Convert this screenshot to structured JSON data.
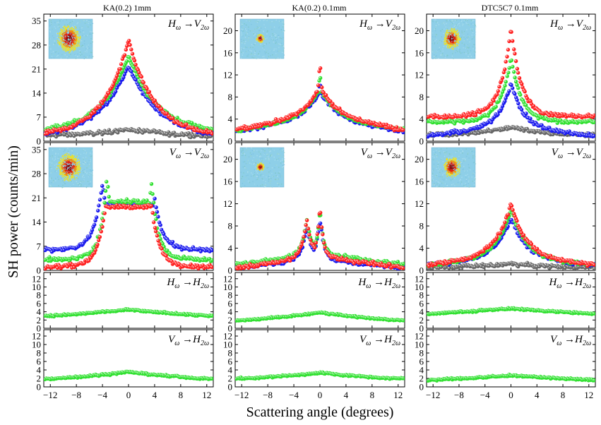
{
  "chart_data": {
    "type": "scatter",
    "title": "",
    "xlabel": "Scattering angle (degrees)",
    "ylabel": "SH power (counts/min)",
    "xlim": [
      -13,
      13
    ],
    "xticks": [
      -12,
      -8,
      -4,
      0,
      4,
      8,
      12
    ],
    "columns": [
      "KA(0.2) 1mm",
      "KA(0.2) 0.1mm",
      "DTC5C7    0.1mm"
    ],
    "series_colors": {
      "red": "#ff2020",
      "green": "#30e030",
      "blue": "#1a1aee",
      "gray": "#666666"
    },
    "panels": [
      {
        "col": 0,
        "row": 0,
        "input": "H",
        "output": "V",
        "ylim": [
          0,
          37
        ],
        "yticks": [
          0,
          7,
          14,
          21,
          28,
          35
        ],
        "inset": true,
        "inset_intensity": "large",
        "series": [
          {
            "name": "red",
            "peaks": [
              {
                "x": 0,
                "y": 29.5,
                "w": 3.8
              }
            ],
            "baseline": 2.0,
            "floor": 1.5
          },
          {
            "name": "green",
            "peaks": [
              {
                "x": 0,
                "y": 25,
                "w": 4.2
              }
            ],
            "baseline": 2.5,
            "floor": 2.5
          },
          {
            "name": "blue",
            "peaks": [
              {
                "x": 0,
                "y": 22,
                "w": 4.5
              }
            ],
            "baseline": 2.0,
            "floor": 1.0
          },
          {
            "name": "gray",
            "peaks": [
              {
                "x": 0,
                "y": 3.5,
                "w": 6
              }
            ],
            "baseline": 1.5,
            "floor": 1.5
          }
        ]
      },
      {
        "col": 1,
        "row": 0,
        "input": "H",
        "output": "V",
        "ylim": [
          0,
          23
        ],
        "yticks": [
          0,
          4,
          8,
          12,
          16,
          20
        ],
        "inset": true,
        "inset_intensity": "small",
        "series": [
          {
            "name": "red",
            "peaks": [
              {
                "x": 0,
                "y": 15,
                "w": 0.4
              },
              {
                "x": 0,
                "y": 10,
                "w": 2.5
              }
            ],
            "baseline": 4.5,
            "floor": 2.0
          },
          {
            "name": "green",
            "peaks": [
              {
                "x": 0,
                "y": 13,
                "w": 0.4
              },
              {
                "x": 0,
                "y": 9.5,
                "w": 2.5
              }
            ],
            "baseline": 4.2,
            "floor": 2.0
          },
          {
            "name": "blue",
            "peaks": [
              {
                "x": 0,
                "y": 11,
                "w": 0.6
              },
              {
                "x": 0,
                "y": 9,
                "w": 2.7
              }
            ],
            "baseline": 3.8,
            "floor": 1.8
          }
        ]
      },
      {
        "col": 2,
        "row": 0,
        "input": "H",
        "output": "V",
        "ylim": [
          0,
          23
        ],
        "yticks": [
          0,
          4,
          8,
          12,
          16,
          20
        ],
        "inset": true,
        "inset_intensity": "medium",
        "series": [
          {
            "name": "red",
            "peaks": [
              {
                "x": 0,
                "y": 20.5,
                "w": 1.6
              }
            ],
            "baseline": 4.5,
            "floor": 4.5
          },
          {
            "name": "green",
            "peaks": [
              {
                "x": 0,
                "y": 15,
                "w": 1.7
              }
            ],
            "baseline": 3.5,
            "floor": 3.5
          },
          {
            "name": "blue",
            "peaks": [
              {
                "x": 0,
                "y": 10.5,
                "w": 1.9
              }
            ],
            "baseline": 2.5,
            "floor": 1.0
          },
          {
            "name": "gray",
            "peaks": [
              {
                "x": 0,
                "y": 2.5,
                "w": 6
              }
            ],
            "baseline": 1.0,
            "floor": 1.0
          }
        ]
      },
      {
        "col": 0,
        "row": 1,
        "input": "V",
        "output": "V",
        "ylim": [
          0,
          37
        ],
        "yticks": [
          0,
          7,
          14,
          21,
          28,
          35
        ],
        "inset": true,
        "inset_intensity": "large",
        "series": [
          {
            "name": "red",
            "peaks": [
              {
                "x": -3.5,
                "y": 19,
                "w": 1.2
              },
              {
                "x": 3.5,
                "y": 19,
                "w": 1.2
              }
            ],
            "plateau": 18.5,
            "baseline": 1.5,
            "floor": 1.0
          },
          {
            "name": "green",
            "peaks": [
              {
                "x": -3.3,
                "y": 27.5,
                "w": 1.0
              },
              {
                "x": 3.5,
                "y": 26,
                "w": 1.0
              }
            ],
            "plateau": 20,
            "baseline": 4.0,
            "floor": 3.0
          },
          {
            "name": "blue",
            "peaks": [
              {
                "x": -4,
                "y": 25,
                "w": 1.3
              },
              {
                "x": 4,
                "y": 21,
                "w": 1.2
              }
            ],
            "plateau": 19,
            "baseline": 6.0,
            "floor": 6.0
          }
        ]
      },
      {
        "col": 1,
        "row": 1,
        "input": "V",
        "output": "V",
        "ylim": [
          0,
          23
        ],
        "yticks": [
          0,
          4,
          8,
          12,
          16,
          20
        ],
        "inset": true,
        "inset_intensity": "small",
        "series": [
          {
            "name": "red",
            "peaks": [
              {
                "x": -2,
                "y": 9.5,
                "w": 0.8
              },
              {
                "x": 0,
                "y": 11.5,
                "w": 0.5
              }
            ],
            "baseline": 2.5,
            "floor": 0.5
          },
          {
            "name": "green",
            "peaks": [
              {
                "x": -2,
                "y": 9.5,
                "w": 0.8
              },
              {
                "x": 0,
                "y": 11,
                "w": 0.5
              }
            ],
            "baseline": 3.0,
            "floor": 1.0
          },
          {
            "name": "blue",
            "peaks": [
              {
                "x": -2,
                "y": 8,
                "w": 0.9
              },
              {
                "x": 0,
                "y": 9.5,
                "w": 0.6
              }
            ],
            "baseline": 2.0,
            "floor": 0.5
          }
        ]
      },
      {
        "col": 2,
        "row": 1,
        "input": "V",
        "output": "V",
        "ylim": [
          0,
          23
        ],
        "yticks": [
          0,
          4,
          8,
          12,
          16,
          20
        ],
        "inset": true,
        "inset_intensity": "medium",
        "series": [
          {
            "name": "red",
            "peaks": [
              {
                "x": 0,
                "y": 12,
                "w": 2.3
              }
            ],
            "baseline": 2.5,
            "floor": 1.0
          },
          {
            "name": "green",
            "peaks": [
              {
                "x": 0,
                "y": 11,
                "w": 2.3
              }
            ],
            "baseline": 2.2,
            "floor": 1.0
          },
          {
            "name": "blue",
            "peaks": [
              {
                "x": 0,
                "y": 9.5,
                "w": 2.4
              }
            ],
            "baseline": 2.0,
            "floor": 1.0
          },
          {
            "name": "gray",
            "peaks": [
              {
                "x": 0,
                "y": 1.2,
                "w": 6
              }
            ],
            "baseline": 0.5,
            "floor": 0.5
          }
        ]
      },
      {
        "col": 0,
        "row": 2,
        "input": "H",
        "output": "H",
        "ylim": [
          0,
          13.5
        ],
        "yticks": [
          0,
          2,
          4,
          6,
          8,
          10,
          12
        ],
        "inset": false,
        "series": [
          {
            "name": "green",
            "peaks": [
              {
                "x": 0,
                "y": 4.5,
                "w": 30
              }
            ],
            "baseline": 0,
            "floor": 3.0
          }
        ]
      },
      {
        "col": 1,
        "row": 2,
        "input": "H",
        "output": "H",
        "ylim": [
          0,
          13.5
        ],
        "yticks": [
          0,
          2,
          4,
          6,
          8,
          10,
          12
        ],
        "inset": false,
        "series": [
          {
            "name": "green",
            "peaks": [
              {
                "x": 0,
                "y": 3.8,
                "w": 18
              }
            ],
            "baseline": 0,
            "floor": 1.5
          }
        ]
      },
      {
        "col": 2,
        "row": 2,
        "input": "H",
        "output": "H",
        "ylim": [
          0,
          13.5
        ],
        "yticks": [
          0,
          2,
          4,
          6,
          8,
          10,
          12
        ],
        "inset": false,
        "series": [
          {
            "name": "green",
            "peaks": [
              {
                "x": 0,
                "y": 4.8,
                "w": 40
              }
            ],
            "baseline": 0,
            "floor": 3.5
          }
        ]
      },
      {
        "col": 0,
        "row": 3,
        "input": "V",
        "output": "H",
        "ylim": [
          0,
          13.5
        ],
        "yticks": [
          0,
          2,
          4,
          6,
          8,
          10,
          12
        ],
        "inset": false,
        "series": [
          {
            "name": "green",
            "peaks": [
              {
                "x": 0,
                "y": 3.5,
                "w": 20
              }
            ],
            "baseline": 0,
            "floor": 1.5
          }
        ]
      },
      {
        "col": 1,
        "row": 3,
        "input": "V",
        "output": "H",
        "ylim": [
          0,
          13.5
        ],
        "yticks": [
          0,
          2,
          4,
          6,
          8,
          10,
          12
        ],
        "inset": false,
        "series": [
          {
            "name": "green",
            "peaks": [
              {
                "x": 0,
                "y": 3.3,
                "w": 22
              }
            ],
            "baseline": 0,
            "floor": 2.0
          }
        ]
      },
      {
        "col": 2,
        "row": 3,
        "input": "V",
        "output": "H",
        "ylim": [
          0,
          13.5
        ],
        "yticks": [
          0,
          2,
          4,
          6,
          8,
          10,
          12
        ],
        "inset": false,
        "series": [
          {
            "name": "green",
            "peaks": [
              {
                "x": 0,
                "y": 2.7,
                "w": 25
              }
            ],
            "baseline": 0,
            "floor": 1.5
          }
        ]
      }
    ],
    "annotation_tokens": {
      "H": "H",
      "V": "V",
      "omega": "ω",
      "two_omega": "2ω",
      "arrow": "→"
    }
  }
}
